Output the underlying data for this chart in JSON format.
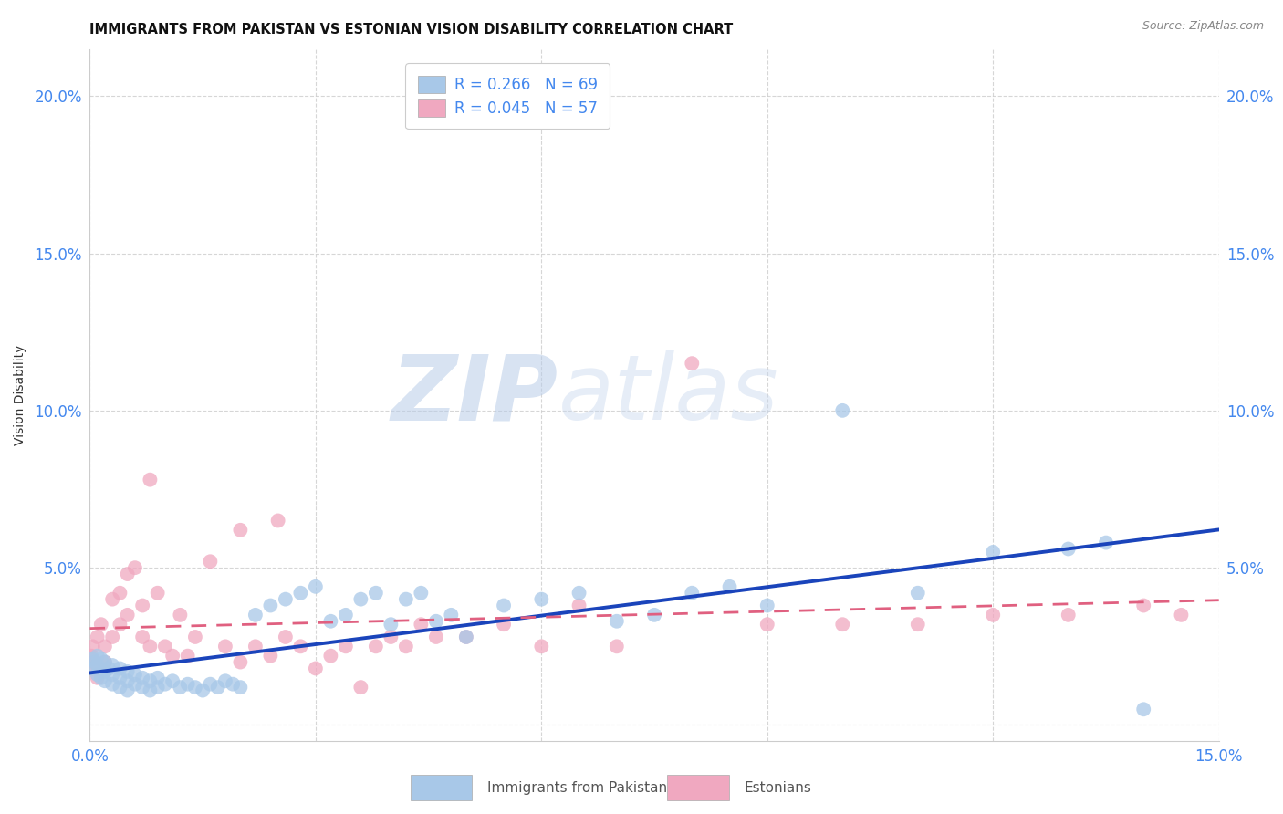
{
  "title": "IMMIGRANTS FROM PAKISTAN VS ESTONIAN VISION DISABILITY CORRELATION CHART",
  "source": "Source: ZipAtlas.com",
  "ylabel": "Vision Disability",
  "watermark_zip": "ZIP",
  "watermark_atlas": "atlas",
  "xlim": [
    0.0,
    0.15
  ],
  "ylim": [
    -0.005,
    0.215
  ],
  "xtick_positions": [
    0.0,
    0.03,
    0.06,
    0.09,
    0.12,
    0.15
  ],
  "xtick_labels": [
    "0.0%",
    "",
    "",
    "",
    "",
    "15.0%"
  ],
  "ytick_positions": [
    0.0,
    0.05,
    0.1,
    0.15,
    0.2
  ],
  "ytick_labels": [
    "",
    "5.0%",
    "10.0%",
    "15.0%",
    "20.0%"
  ],
  "legend_entry_blue": {
    "label": "Immigrants from Pakistan",
    "R": "0.266",
    "N": "69"
  },
  "legend_entry_pink": {
    "label": "Estonians",
    "R": "0.045",
    "N": "57"
  },
  "blue_line_color": "#1a44bb",
  "pink_line_color": "#e06080",
  "blue_scatter_color": "#a8c8e8",
  "pink_scatter_color": "#f0a8c0",
  "tick_label_color": "#4488ee",
  "background_color": "#ffffff",
  "blue_scatter_x": [
    0.0003,
    0.0005,
    0.0007,
    0.001,
    0.001,
    0.001,
    0.0015,
    0.0015,
    0.002,
    0.002,
    0.002,
    0.0025,
    0.003,
    0.003,
    0.003,
    0.004,
    0.004,
    0.004,
    0.005,
    0.005,
    0.005,
    0.006,
    0.006,
    0.007,
    0.007,
    0.008,
    0.008,
    0.009,
    0.009,
    0.01,
    0.011,
    0.012,
    0.013,
    0.014,
    0.015,
    0.016,
    0.017,
    0.018,
    0.019,
    0.02,
    0.022,
    0.024,
    0.026,
    0.028,
    0.03,
    0.032,
    0.034,
    0.036,
    0.038,
    0.04,
    0.042,
    0.044,
    0.046,
    0.048,
    0.05,
    0.055,
    0.06,
    0.065,
    0.07,
    0.075,
    0.08,
    0.085,
    0.09,
    0.1,
    0.11,
    0.12,
    0.13,
    0.135,
    0.14
  ],
  "blue_scatter_y": [
    0.021,
    0.018,
    0.02,
    0.016,
    0.019,
    0.022,
    0.015,
    0.021,
    0.014,
    0.017,
    0.02,
    0.018,
    0.013,
    0.016,
    0.019,
    0.012,
    0.015,
    0.018,
    0.011,
    0.014,
    0.017,
    0.013,
    0.016,
    0.012,
    0.015,
    0.011,
    0.014,
    0.012,
    0.015,
    0.013,
    0.014,
    0.012,
    0.013,
    0.012,
    0.011,
    0.013,
    0.012,
    0.014,
    0.013,
    0.012,
    0.035,
    0.038,
    0.04,
    0.042,
    0.044,
    0.033,
    0.035,
    0.04,
    0.042,
    0.032,
    0.04,
    0.042,
    0.033,
    0.035,
    0.028,
    0.038,
    0.04,
    0.042,
    0.033,
    0.035,
    0.042,
    0.044,
    0.038,
    0.1,
    0.042,
    0.055,
    0.056,
    0.058,
    0.005
  ],
  "pink_scatter_x": [
    0.0002,
    0.0004,
    0.0006,
    0.001,
    0.001,
    0.001,
    0.0015,
    0.002,
    0.002,
    0.003,
    0.003,
    0.004,
    0.004,
    0.005,
    0.005,
    0.006,
    0.007,
    0.007,
    0.008,
    0.009,
    0.01,
    0.011,
    0.012,
    0.013,
    0.014,
    0.016,
    0.018,
    0.02,
    0.022,
    0.024,
    0.026,
    0.028,
    0.03,
    0.032,
    0.034,
    0.036,
    0.038,
    0.04,
    0.042,
    0.044,
    0.046,
    0.05,
    0.055,
    0.06,
    0.065,
    0.07,
    0.08,
    0.09,
    0.1,
    0.11,
    0.12,
    0.13,
    0.14,
    0.145,
    0.02,
    0.025,
    0.008
  ],
  "pink_scatter_y": [
    0.022,
    0.025,
    0.02,
    0.028,
    0.018,
    0.015,
    0.032,
    0.025,
    0.02,
    0.04,
    0.028,
    0.042,
    0.032,
    0.048,
    0.035,
    0.05,
    0.028,
    0.038,
    0.025,
    0.042,
    0.025,
    0.022,
    0.035,
    0.022,
    0.028,
    0.052,
    0.025,
    0.02,
    0.025,
    0.022,
    0.028,
    0.025,
    0.018,
    0.022,
    0.025,
    0.012,
    0.025,
    0.028,
    0.025,
    0.032,
    0.028,
    0.028,
    0.032,
    0.025,
    0.038,
    0.025,
    0.115,
    0.032,
    0.032,
    0.032,
    0.035,
    0.035,
    0.038,
    0.035,
    0.062,
    0.065,
    0.078
  ]
}
